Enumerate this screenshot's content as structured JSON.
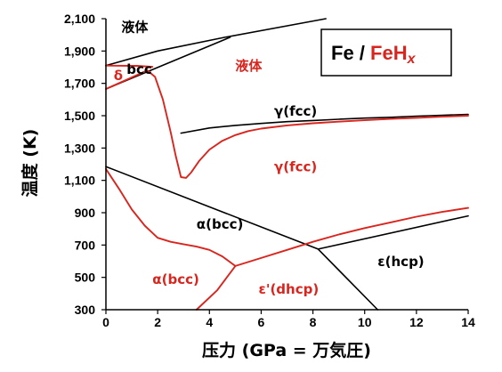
{
  "chart_data": {
    "type": "line",
    "xlabel": "压力 (GPa = 万気圧)",
    "ylabel": "温度 (K)",
    "xlim": [
      0,
      14
    ],
    "ylim": [
      300,
      2100
    ],
    "x_ticks": [
      0,
      2,
      4,
      6,
      8,
      10,
      12,
      14
    ],
    "y_ticks": [
      300,
      500,
      700,
      900,
      1100,
      1300,
      1500,
      1700,
      1900,
      2100
    ],
    "y_tick_labels": [
      "300",
      "500",
      "700",
      "900",
      "1,100",
      "1,300",
      "1,500",
      "1,700",
      "1,900",
      "2,100"
    ],
    "grid": false,
    "colors": {
      "fe": "#000000",
      "feh": "#d9251d"
    },
    "legend": {
      "position": "top-right",
      "fe_text": "Fe / ",
      "feh_text": "FeH",
      "feh_sub": "x"
    },
    "series": [
      {
        "group": "fe",
        "x": [
          0,
          2,
          4.6,
          8.5
        ],
        "y": [
          1810,
          1900,
          1985,
          2100
        ]
      },
      {
        "group": "fe",
        "x": [
          0,
          4.8
        ],
        "y": [
          1665,
          1985
        ]
      },
      {
        "group": "fe",
        "x": [
          0,
          8.2
        ],
        "y": [
          1185,
          675
        ]
      },
      {
        "group": "fe",
        "x": [
          2.9,
          4,
          5,
          6,
          7,
          8,
          9,
          10,
          11,
          12,
          13,
          14
        ],
        "y": [
          1392,
          1424,
          1440,
          1452,
          1463,
          1470,
          1478,
          1485,
          1490,
          1497,
          1503,
          1508
        ]
      },
      {
        "group": "fe",
        "x": [
          8.2,
          14
        ],
        "y": [
          675,
          880
        ]
      },
      {
        "group": "fe",
        "x": [
          8.2,
          10.5
        ],
        "y": [
          675,
          300
        ]
      },
      {
        "group": "feh",
        "x": [
          0,
          1.2,
          1.8
        ],
        "y": [
          1810,
          1808,
          1802
        ]
      },
      {
        "group": "feh",
        "x": [
          0,
          1.6
        ],
        "y": [
          1665,
          1780
        ]
      },
      {
        "group": "feh",
        "x": [
          1.6,
          1.9,
          2.2,
          2.5,
          2.7,
          2.9,
          3.1,
          3.3,
          3.6,
          4.0,
          4.5,
          5.0,
          5.5,
          6,
          7,
          8,
          9,
          10,
          11,
          12,
          13,
          14
        ],
        "y": [
          1780,
          1740,
          1600,
          1400,
          1250,
          1120,
          1115,
          1150,
          1220,
          1290,
          1345,
          1380,
          1405,
          1420,
          1440,
          1453,
          1463,
          1472,
          1480,
          1487,
          1494,
          1500
        ]
      },
      {
        "group": "feh",
        "x": [
          0,
          0.5,
          1.0,
          1.5,
          2.0,
          2.5,
          3.0,
          3.5,
          4.0,
          4.5,
          5.0
        ],
        "y": [
          1170,
          1050,
          920,
          820,
          745,
          720,
          705,
          690,
          670,
          630,
          570
        ]
      },
      {
        "group": "feh",
        "x": [
          3.5,
          4.3,
          5.0
        ],
        "y": [
          300,
          420,
          570
        ]
      },
      {
        "group": "feh",
        "x": [
          5.0,
          6,
          7,
          8,
          9,
          10,
          11,
          12,
          13,
          14
        ],
        "y": [
          570,
          620,
          670,
          720,
          765,
          805,
          840,
          875,
          905,
          930
        ]
      }
    ],
    "annotations": [
      {
        "text": "液体",
        "x": 0.6,
        "y": 2020,
        "group": "fe"
      },
      {
        "text": "bcc",
        "x": 0.8,
        "y": 1760,
        "group": "fe"
      },
      {
        "text": "δ",
        "x": 0.3,
        "y": 1720,
        "group": "feh"
      },
      {
        "text": "液体",
        "x": 5.0,
        "y": 1780,
        "group": "feh"
      },
      {
        "text": "γ(fcc)",
        "x": 6.5,
        "y": 1500,
        "group": "fe"
      },
      {
        "text": "γ(fcc)",
        "x": 6.5,
        "y": 1155,
        "group": "feh"
      },
      {
        "text": "α(bcc)",
        "x": 3.5,
        "y": 800,
        "group": "fe"
      },
      {
        "text": "α(bcc)",
        "x": 1.8,
        "y": 460,
        "group": "feh"
      },
      {
        "text": "ε(hcp)",
        "x": 10.5,
        "y": 570,
        "group": "fe"
      },
      {
        "text": "ε'(dhcp)",
        "x": 5.9,
        "y": 400,
        "group": "feh"
      }
    ]
  }
}
